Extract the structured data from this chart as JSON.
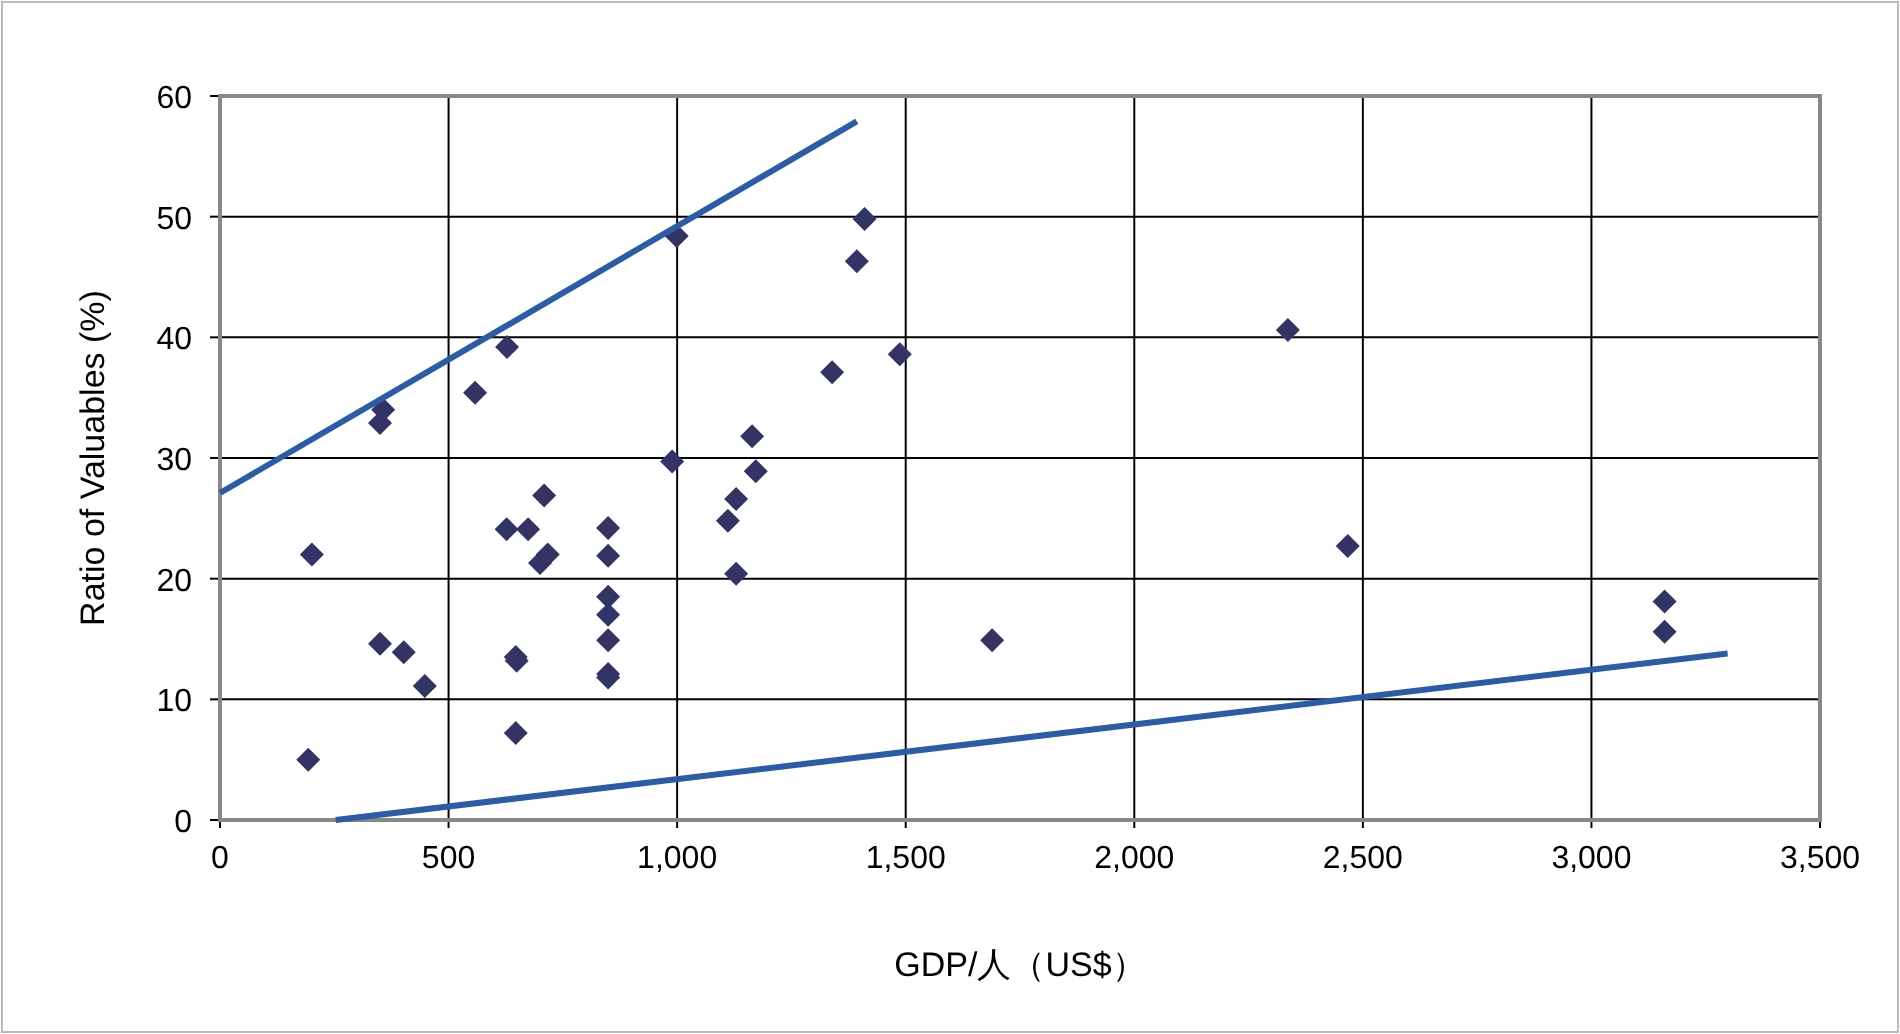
{
  "chart_data": {
    "type": "scatter",
    "xlabel": "GDP/人（US$）",
    "ylabel": "Ratio of Valuables (%)",
    "xlim": [
      0,
      3500
    ],
    "ylim": [
      0,
      60
    ],
    "xticks": [
      0,
      {
        "value": 500,
        "label": "500"
      },
      {
        "value": 1000,
        "label": "1,000"
      },
      {
        "value": 1500,
        "label": "1,500"
      },
      {
        "value": 2000,
        "label": "2,000"
      },
      {
        "value": 2500,
        "label": "2,500"
      },
      {
        "value": 3000,
        "label": "3,000"
      },
      {
        "value": 3500,
        "label": "3,500"
      }
    ],
    "yticks": [
      0,
      10,
      20,
      30,
      40,
      50,
      60
    ],
    "grid": true,
    "series": [
      {
        "type": "scatter",
        "marker": "diamond",
        "color": "#333366",
        "x": [
          193,
          201,
          350,
          357,
          350,
          402,
          448,
          558,
          628,
          627,
          647,
          649,
          647,
          674,
          709,
          700,
          717,
          849,
          849,
          849,
          849,
          849,
          849,
          849,
          989,
          999,
          1111,
          1129,
          1129,
          1164,
          1172,
          1339,
          1393,
          1410,
          1487,
          1689,
          2336,
          2467,
          3160,
          3160
        ],
        "values": [
          5.0,
          22.0,
          32.9,
          34.0,
          14.6,
          13.9,
          11.1,
          35.4,
          39.2,
          24.1,
          13.5,
          13.2,
          7.2,
          24.1,
          26.9,
          21.3,
          22.0,
          24.2,
          21.9,
          18.5,
          17.0,
          14.9,
          12.1,
          11.8,
          29.7,
          48.4,
          24.8,
          26.6,
          20.4,
          31.8,
          28.9,
          37.1,
          46.3,
          49.8,
          38.6,
          14.9,
          40.6,
          22.7,
          18.1,
          15.6
        ]
      },
      {
        "type": "line",
        "marker": "none",
        "color": "#2b5ca8",
        "x": [
          0,
          1393
        ],
        "values": [
          27.1,
          57.9
        ]
      },
      {
        "type": "line",
        "marker": "none",
        "color": "#2b5ca8",
        "x": [
          253,
          3298
        ],
        "values": [
          0,
          13.8
        ]
      }
    ]
  }
}
